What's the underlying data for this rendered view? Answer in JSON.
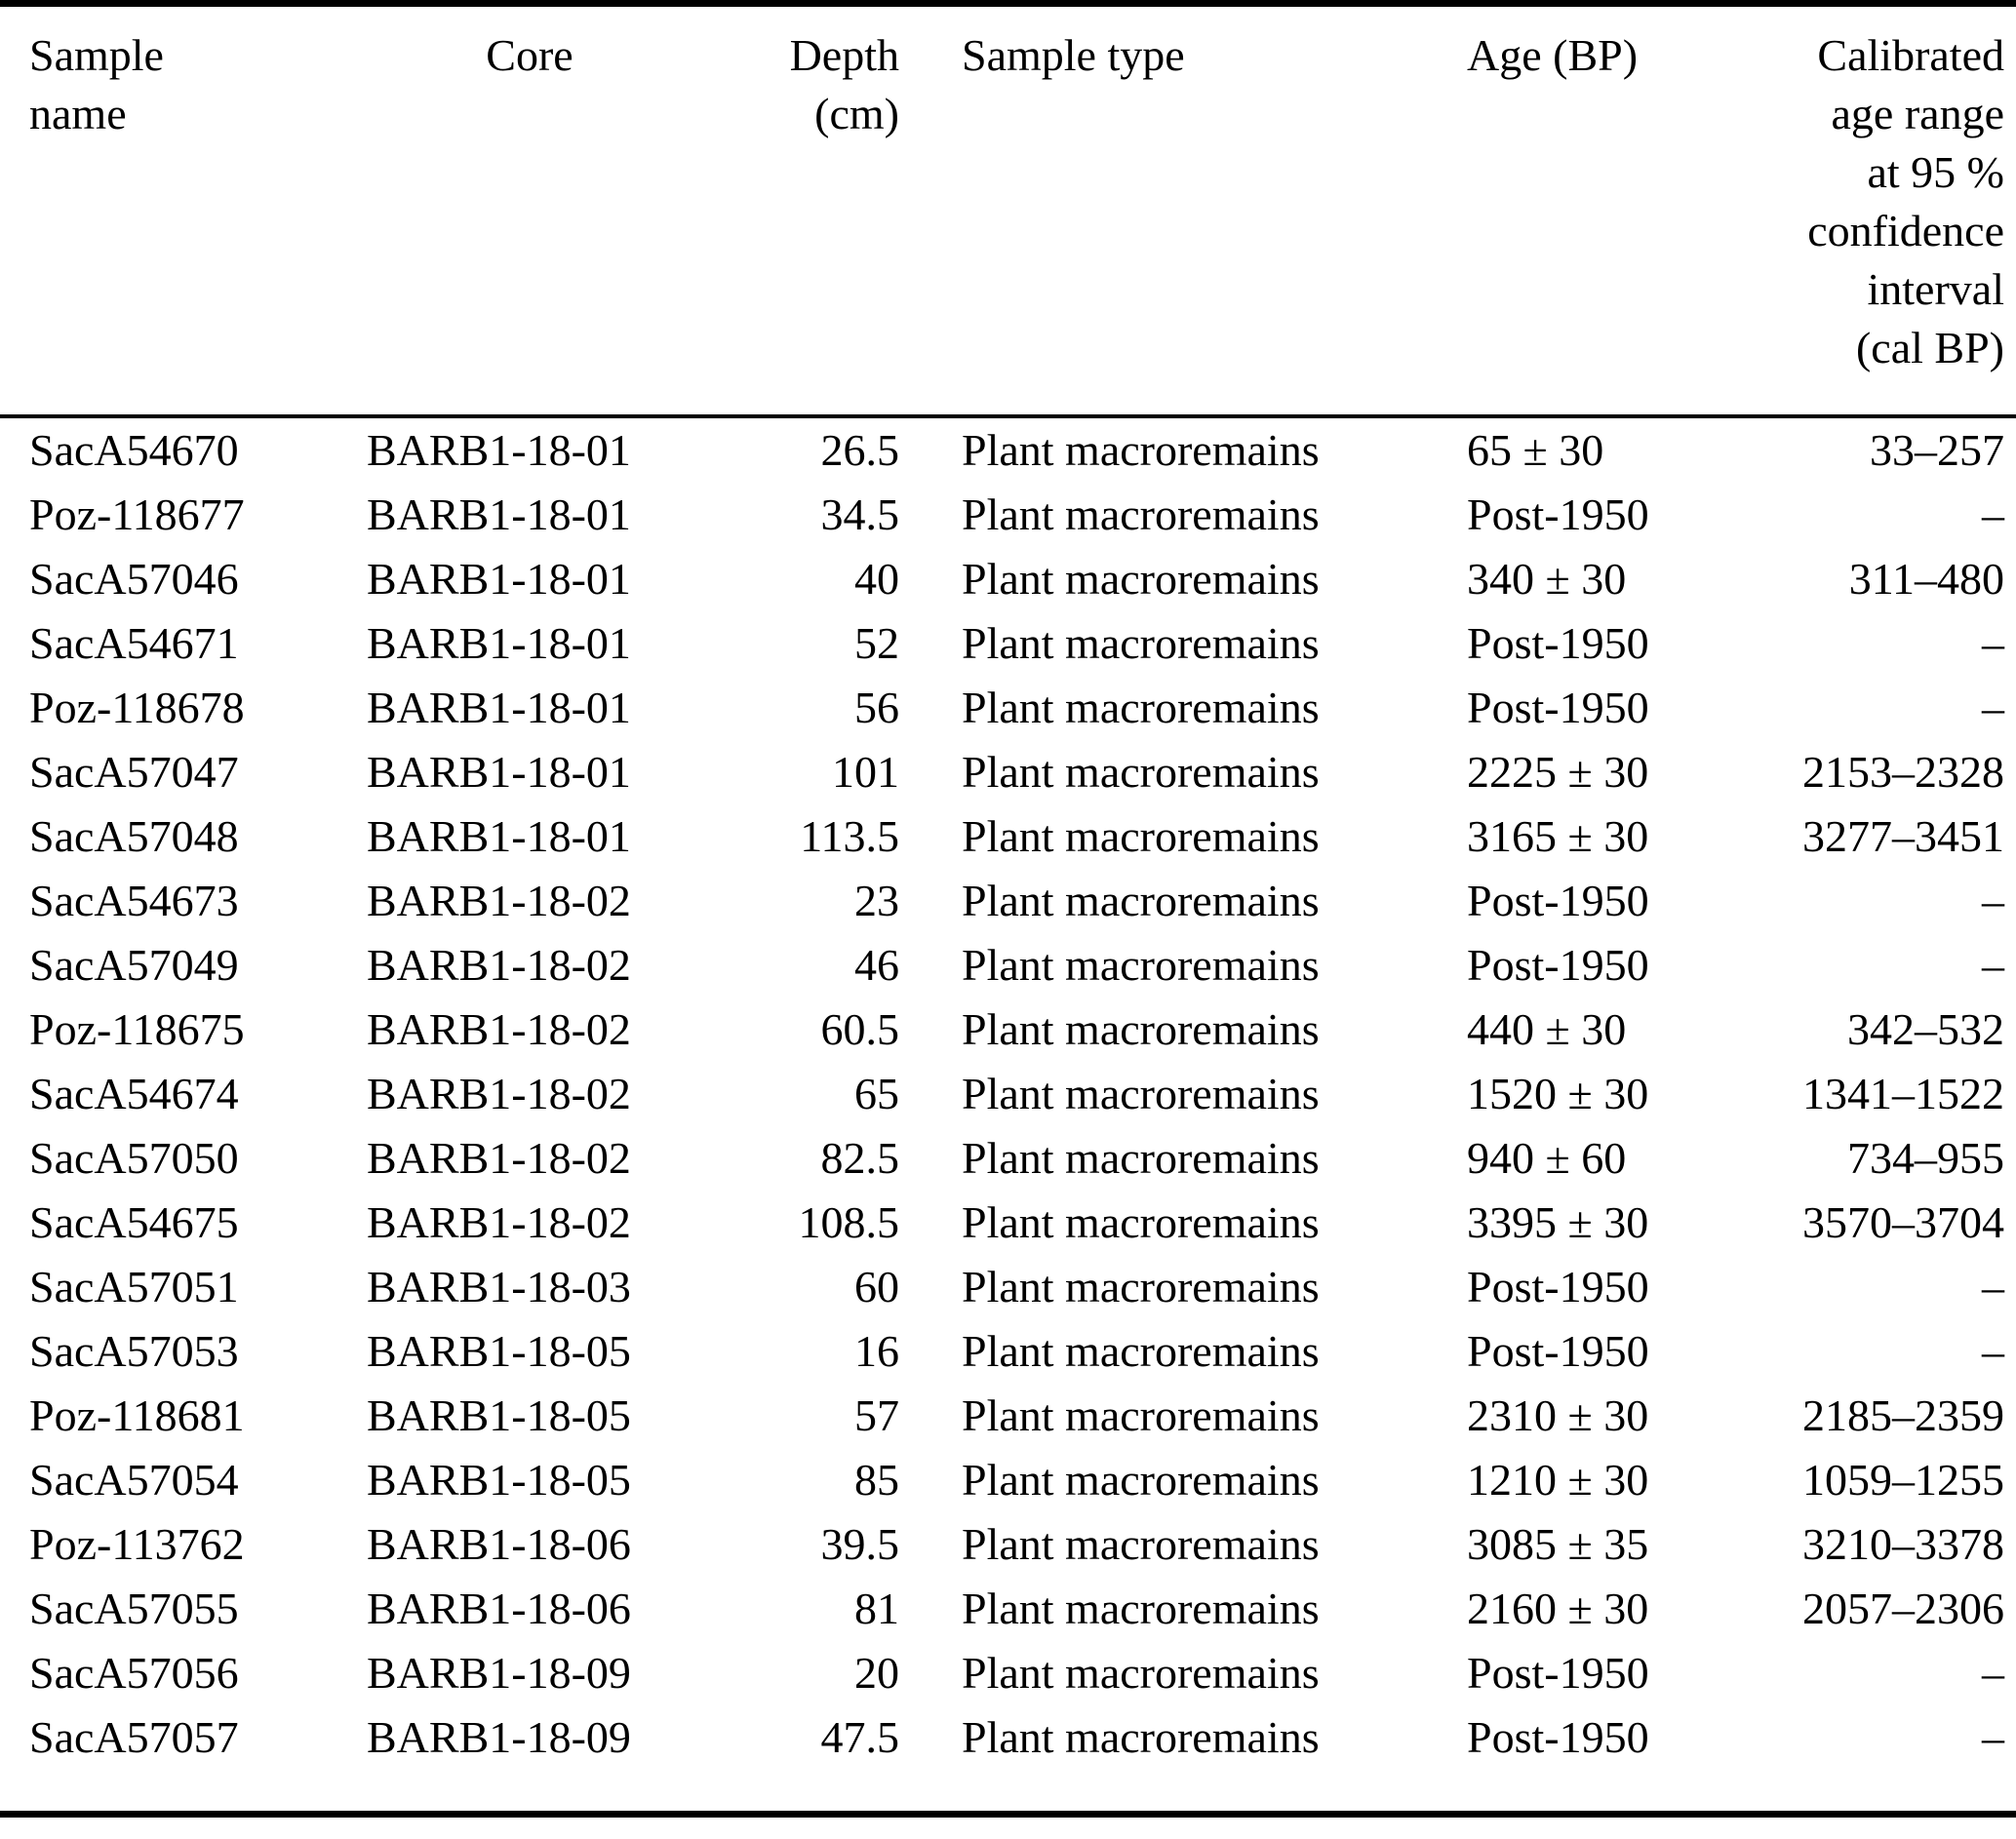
{
  "colors": {
    "text": "#000000",
    "background": "#ffffff",
    "rule": "#000000"
  },
  "table": {
    "headers": {
      "sample": "Sample\nname",
      "core": "Core",
      "depth": "Depth\n(cm)",
      "type": "Sample type",
      "age": "Age (BP)",
      "cal": "Calibrated\nage range\nat 95 %\nconfidence\ninterval\n(cal BP)"
    },
    "rows": [
      {
        "sample": "SacA54670",
        "core": "BARB1-18-01",
        "depth": "26.5",
        "type": "Plant macroremains",
        "age": "65 ± 30",
        "cal": "33–257"
      },
      {
        "sample": "Poz-118677",
        "core": "BARB1-18-01",
        "depth": "34.5",
        "type": "Plant macroremains",
        "age": "Post-1950",
        "cal": "–"
      },
      {
        "sample": "SacA57046",
        "core": "BARB1-18-01",
        "depth": "40",
        "type": "Plant macroremains",
        "age": "340 ± 30",
        "cal": "311–480"
      },
      {
        "sample": "SacA54671",
        "core": "BARB1-18-01",
        "depth": "52",
        "type": "Plant macroremains",
        "age": "Post-1950",
        "cal": "–"
      },
      {
        "sample": "Poz-118678",
        "core": "BARB1-18-01",
        "depth": "56",
        "type": "Plant macroremains",
        "age": "Post-1950",
        "cal": "–"
      },
      {
        "sample": "SacA57047",
        "core": "BARB1-18-01",
        "depth": "101",
        "type": "Plant macroremains",
        "age": "2225 ± 30",
        "cal": "2153–2328"
      },
      {
        "sample": "SacA57048",
        "core": "BARB1-18-01",
        "depth": "113.5",
        "type": "Plant macroremains",
        "age": "3165 ± 30",
        "cal": "3277–3451"
      },
      {
        "sample": "SacA54673",
        "core": "BARB1-18-02",
        "depth": "23",
        "type": "Plant macroremains",
        "age": "Post-1950",
        "cal": "–"
      },
      {
        "sample": "SacA57049",
        "core": "BARB1-18-02",
        "depth": "46",
        "type": "Plant macroremains",
        "age": "Post-1950",
        "cal": "–"
      },
      {
        "sample": "Poz-118675",
        "core": "BARB1-18-02",
        "depth": "60.5",
        "type": "Plant macroremains",
        "age": "440 ± 30",
        "cal": "342–532"
      },
      {
        "sample": "SacA54674",
        "core": "BARB1-18-02",
        "depth": "65",
        "type": "Plant macroremains",
        "age": "1520 ± 30",
        "cal": "1341–1522"
      },
      {
        "sample": "SacA57050",
        "core": "BARB1-18-02",
        "depth": "82.5",
        "type": "Plant macroremains",
        "age": "940 ± 60",
        "cal": "734–955"
      },
      {
        "sample": "SacA54675",
        "core": "BARB1-18-02",
        "depth": "108.5",
        "type": "Plant macroremains",
        "age": "3395 ± 30",
        "cal": "3570–3704"
      },
      {
        "sample": "SacA57051",
        "core": "BARB1-18-03",
        "depth": "60",
        "type": "Plant macroremains",
        "age": "Post-1950",
        "cal": "–"
      },
      {
        "sample": "SacA57053",
        "core": "BARB1-18-05",
        "depth": "16",
        "type": "Plant macroremains",
        "age": "Post-1950",
        "cal": "–"
      },
      {
        "sample": "Poz-118681",
        "core": "BARB1-18-05",
        "depth": "57",
        "type": "Plant macroremains",
        "age": "2310 ± 30",
        "cal": "2185–2359"
      },
      {
        "sample": "SacA57054",
        "core": "BARB1-18-05",
        "depth": "85",
        "type": "Plant macroremains",
        "age": "1210 ± 30",
        "cal": "1059–1255"
      },
      {
        "sample": "Poz-113762",
        "core": "BARB1-18-06",
        "depth": "39.5",
        "type": "Plant macroremains",
        "age": "3085 ± 35",
        "cal": "3210–3378"
      },
      {
        "sample": "SacA57055",
        "core": "BARB1-18-06",
        "depth": "81",
        "type": "Plant macroremains",
        "age": "2160 ± 30",
        "cal": "2057–2306"
      },
      {
        "sample": "SacA57056",
        "core": "BARB1-18-09",
        "depth": "20",
        "type": "Plant macroremains",
        "age": "Post-1950",
        "cal": "–"
      },
      {
        "sample": "SacA57057",
        "core": "BARB1-18-09",
        "depth": "47.5",
        "type": "Plant macroremains",
        "age": "Post-1950",
        "cal": "–"
      }
    ]
  }
}
